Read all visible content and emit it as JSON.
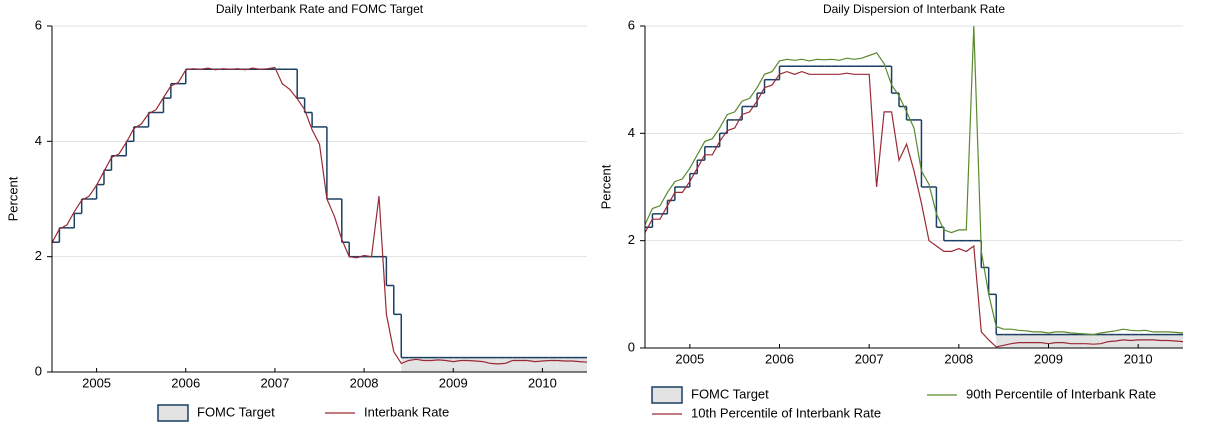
{
  "chart_data": [
    {
      "type": "line",
      "title": "Daily Interbank Rate and FOMC Target",
      "y_label": "Percent",
      "xlim": [
        2005,
        2011
      ],
      "ylim": [
        0,
        6
      ],
      "yticks": [
        0,
        2,
        4,
        6
      ],
      "xticks": [
        {
          "value": 2005.5,
          "label": "2005"
        },
        {
          "value": 2006.5,
          "label": "2006"
        },
        {
          "value": 2007.5,
          "label": "2007"
        },
        {
          "value": 2008.5,
          "label": "2008"
        },
        {
          "value": 2009.5,
          "label": "2009"
        },
        {
          "value": 2010.5,
          "label": "2010"
        }
      ],
      "grid": true,
      "legend": "bottom",
      "legend_columns": 2,
      "x": [
        2005.0,
        2005.083,
        2005.167,
        2005.25,
        2005.333,
        2005.417,
        2005.5,
        2005.583,
        2005.667,
        2005.75,
        2005.833,
        2005.917,
        2006.0,
        2006.083,
        2006.167,
        2006.25,
        2006.333,
        2006.417,
        2006.5,
        2006.583,
        2006.667,
        2006.75,
        2006.833,
        2006.917,
        2007.0,
        2007.083,
        2007.167,
        2007.25,
        2007.333,
        2007.417,
        2007.5,
        2007.583,
        2007.667,
        2007.75,
        2007.833,
        2007.917,
        2008.0,
        2008.083,
        2008.167,
        2008.25,
        2008.333,
        2008.417,
        2008.5,
        2008.583,
        2008.667,
        2008.75,
        2008.833,
        2008.917,
        2009.0,
        2009.083,
        2009.167,
        2009.25,
        2009.333,
        2009.417,
        2009.5,
        2009.583,
        2009.667,
        2009.75,
        2009.833,
        2009.917,
        2010.0,
        2010.083,
        2010.167,
        2010.25,
        2010.333,
        2010.417,
        2010.5,
        2010.583,
        2010.667,
        2010.75,
        2010.833,
        2010.917,
        2011.0
      ],
      "series": [
        {
          "name": "FOMC Target",
          "style": "step-band",
          "color": "#1a3f63",
          "fill": "#e3e3e3",
          "values": [
            2.25,
            2.5,
            2.5,
            2.75,
            3.0,
            3.0,
            3.25,
            3.5,
            3.75,
            3.75,
            4.0,
            4.25,
            4.25,
            4.5,
            4.5,
            4.75,
            5.0,
            5.0,
            5.25,
            5.25,
            5.25,
            5.25,
            5.25,
            5.25,
            5.25,
            5.25,
            5.25,
            5.25,
            5.25,
            5.25,
            5.25,
            5.25,
            5.25,
            4.75,
            4.5,
            4.25,
            4.25,
            3.0,
            3.0,
            2.25,
            2.0,
            2.0,
            2.0,
            2.0,
            2.0,
            1.5,
            1.0,
            0.25,
            0.25,
            0.25,
            0.25,
            0.25,
            0.25,
            0.25,
            0.25,
            0.25,
            0.25,
            0.25,
            0.25,
            0.25,
            0.25,
            0.25,
            0.25,
            0.25,
            0.25,
            0.25,
            0.25,
            0.25,
            0.25,
            0.25,
            0.25,
            0.25,
            0.25
          ],
          "lower": [
            null,
            null,
            null,
            null,
            null,
            null,
            null,
            null,
            null,
            null,
            null,
            null,
            null,
            null,
            null,
            null,
            null,
            null,
            null,
            null,
            null,
            null,
            null,
            null,
            null,
            null,
            null,
            null,
            null,
            null,
            null,
            null,
            null,
            null,
            null,
            null,
            null,
            null,
            null,
            null,
            null,
            null,
            null,
            null,
            null,
            null,
            null,
            0,
            0,
            0,
            0,
            0,
            0,
            0,
            0,
            0,
            0,
            0,
            0,
            0,
            0,
            0,
            0,
            0,
            0,
            0,
            0,
            0,
            0,
            0,
            0,
            0,
            0
          ]
        },
        {
          "name": "Interbank Rate",
          "style": "line",
          "color": "#9a2a35",
          "values": [
            2.24,
            2.48,
            2.55,
            2.78,
            2.98,
            3.05,
            3.24,
            3.48,
            3.72,
            3.78,
            3.98,
            4.22,
            4.3,
            4.48,
            4.55,
            4.76,
            4.96,
            5.02,
            5.24,
            5.26,
            5.25,
            5.27,
            5.24,
            5.26,
            5.25,
            5.26,
            5.24,
            5.27,
            5.25,
            5.26,
            5.28,
            5.0,
            4.9,
            4.74,
            4.55,
            4.2,
            3.95,
            3.0,
            2.7,
            2.3,
            2.0,
            1.98,
            2.02,
            2.0,
            3.05,
            1.0,
            0.35,
            0.15,
            0.2,
            0.22,
            0.2,
            0.2,
            0.21,
            0.2,
            0.18,
            0.2,
            0.2,
            0.19,
            0.18,
            0.15,
            0.14,
            0.15,
            0.2,
            0.2,
            0.2,
            0.18,
            0.19,
            0.2,
            0.2,
            0.19,
            0.19,
            0.18,
            0.17
          ]
        }
      ]
    },
    {
      "type": "line",
      "title": "Daily Dispersion of Interbank Rate",
      "y_label": "Percent",
      "xlim": [
        2005,
        2011
      ],
      "ylim": [
        0,
        6
      ],
      "yticks": [
        0,
        2,
        4,
        6
      ],
      "xticks": [
        {
          "value": 2005.5,
          "label": "2005"
        },
        {
          "value": 2006.5,
          "label": "2006"
        },
        {
          "value": 2007.5,
          "label": "2007"
        },
        {
          "value": 2008.5,
          "label": "2008"
        },
        {
          "value": 2009.5,
          "label": "2009"
        },
        {
          "value": 2010.5,
          "label": "2010"
        }
      ],
      "grid": true,
      "legend": "bottom",
      "legend_columns": 2,
      "x": [
        2005.0,
        2005.083,
        2005.167,
        2005.25,
        2005.333,
        2005.417,
        2005.5,
        2005.583,
        2005.667,
        2005.75,
        2005.833,
        2005.917,
        2006.0,
        2006.083,
        2006.167,
        2006.25,
        2006.333,
        2006.417,
        2006.5,
        2006.583,
        2006.667,
        2006.75,
        2006.833,
        2006.917,
        2007.0,
        2007.083,
        2007.167,
        2007.25,
        2007.333,
        2007.417,
        2007.5,
        2007.583,
        2007.667,
        2007.75,
        2007.833,
        2007.917,
        2008.0,
        2008.083,
        2008.167,
        2008.25,
        2008.333,
        2008.417,
        2008.5,
        2008.583,
        2008.667,
        2008.75,
        2008.833,
        2008.917,
        2009.0,
        2009.083,
        2009.167,
        2009.25,
        2009.333,
        2009.417,
        2009.5,
        2009.583,
        2009.667,
        2009.75,
        2009.833,
        2009.917,
        2010.0,
        2010.083,
        2010.167,
        2010.25,
        2010.333,
        2010.417,
        2010.5,
        2010.583,
        2010.667,
        2010.75,
        2010.833,
        2010.917,
        2011.0
      ],
      "series": [
        {
          "name": "FOMC Target",
          "style": "step-band",
          "color": "#1a3f63",
          "fill": "#e3e3e3",
          "values": [
            2.25,
            2.5,
            2.5,
            2.75,
            3.0,
            3.0,
            3.25,
            3.5,
            3.75,
            3.75,
            4.0,
            4.25,
            4.25,
            4.5,
            4.5,
            4.75,
            5.0,
            5.0,
            5.25,
            5.25,
            5.25,
            5.25,
            5.25,
            5.25,
            5.25,
            5.25,
            5.25,
            5.25,
            5.25,
            5.25,
            5.25,
            5.25,
            5.25,
            4.75,
            4.5,
            4.25,
            4.25,
            3.0,
            3.0,
            2.25,
            2.0,
            2.0,
            2.0,
            2.0,
            2.0,
            1.5,
            1.0,
            0.25,
            0.25,
            0.25,
            0.25,
            0.25,
            0.25,
            0.25,
            0.25,
            0.25,
            0.25,
            0.25,
            0.25,
            0.25,
            0.25,
            0.25,
            0.25,
            0.25,
            0.25,
            0.25,
            0.25,
            0.25,
            0.25,
            0.25,
            0.25,
            0.25,
            0.25
          ],
          "lower": [
            null,
            null,
            null,
            null,
            null,
            null,
            null,
            null,
            null,
            null,
            null,
            null,
            null,
            null,
            null,
            null,
            null,
            null,
            null,
            null,
            null,
            null,
            null,
            null,
            null,
            null,
            null,
            null,
            null,
            null,
            null,
            null,
            null,
            null,
            null,
            null,
            null,
            null,
            null,
            null,
            null,
            null,
            null,
            null,
            null,
            null,
            null,
            0,
            0,
            0,
            0,
            0,
            0,
            0,
            0,
            0,
            0,
            0,
            0,
            0,
            0,
            0,
            0,
            0,
            0,
            0,
            0,
            0,
            0,
            0,
            0,
            0,
            0
          ]
        },
        {
          "name": "90th Percentile of Interbank Rate",
          "style": "line",
          "color": "#5a8a2e",
          "values": [
            2.3,
            2.6,
            2.65,
            2.9,
            3.1,
            3.15,
            3.35,
            3.6,
            3.85,
            3.9,
            4.1,
            4.35,
            4.4,
            4.6,
            4.65,
            4.85,
            5.1,
            5.15,
            5.35,
            5.38,
            5.36,
            5.38,
            5.35,
            5.38,
            5.37,
            5.38,
            5.36,
            5.4,
            5.38,
            5.4,
            5.45,
            5.5,
            5.3,
            4.9,
            4.7,
            4.4,
            4.1,
            3.3,
            3.05,
            2.5,
            2.2,
            2.15,
            2.2,
            2.2,
            6.0,
            1.8,
            1.0,
            0.4,
            0.35,
            0.35,
            0.33,
            0.32,
            0.3,
            0.3,
            0.28,
            0.3,
            0.3,
            0.28,
            0.27,
            0.26,
            0.25,
            0.28,
            0.3,
            0.32,
            0.35,
            0.33,
            0.32,
            0.33,
            0.3,
            0.3,
            0.3,
            0.29,
            0.28
          ]
        },
        {
          "name": "10th Percentile of Interbank Rate",
          "style": "line",
          "color": "#9a2a35",
          "values": [
            2.15,
            2.4,
            2.4,
            2.65,
            2.9,
            2.9,
            3.1,
            3.35,
            3.6,
            3.6,
            3.85,
            4.05,
            4.1,
            4.35,
            4.4,
            4.6,
            4.85,
            4.9,
            5.1,
            5.15,
            5.1,
            5.15,
            5.1,
            5.1,
            5.1,
            5.1,
            5.1,
            5.12,
            5.1,
            5.1,
            5.1,
            3.0,
            4.4,
            4.4,
            3.5,
            3.8,
            3.3,
            2.7,
            2.0,
            1.9,
            1.8,
            1.8,
            1.85,
            1.8,
            1.9,
            0.3,
            0.15,
            0.02,
            0.05,
            0.08,
            0.1,
            0.1,
            0.1,
            0.1,
            0.08,
            0.1,
            0.1,
            0.08,
            0.08,
            0.08,
            0.07,
            0.08,
            0.12,
            0.13,
            0.15,
            0.14,
            0.15,
            0.15,
            0.15,
            0.14,
            0.14,
            0.13,
            0.12
          ]
        }
      ]
    }
  ]
}
